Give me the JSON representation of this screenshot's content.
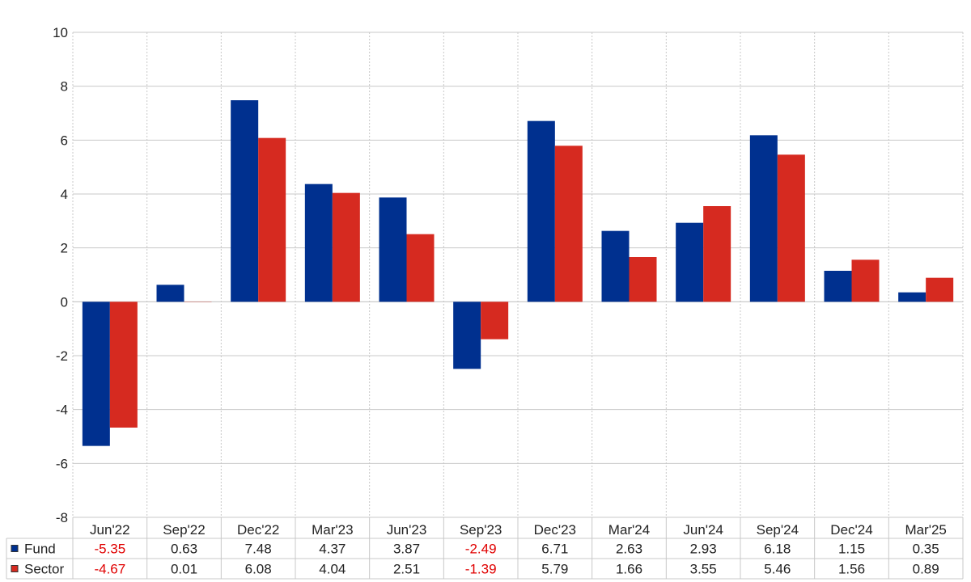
{
  "chart_data": {
    "type": "bar",
    "categories": [
      "Jun'22",
      "Sep'22",
      "Dec'22",
      "Mar'23",
      "Jun'23",
      "Sep'23",
      "Dec'23",
      "Mar'24",
      "Jun'24",
      "Sep'24",
      "Dec'24",
      "Mar'25"
    ],
    "series": [
      {
        "name": "Fund",
        "color": "#00308f",
        "values": [
          -5.35,
          0.63,
          7.48,
          4.37,
          3.87,
          -2.49,
          6.71,
          2.63,
          2.93,
          6.18,
          1.15,
          0.35
        ]
      },
      {
        "name": "Sector",
        "color": "#d62a20",
        "values": [
          -4.67,
          0.01,
          6.08,
          4.04,
          2.51,
          -1.39,
          5.79,
          1.66,
          3.55,
          5.46,
          1.56,
          0.89
        ]
      }
    ],
    "value_labels": {
      "Fund": [
        "-5.35",
        "0.63",
        "7.48",
        "4.37",
        "3.87",
        "-2.49",
        "6.71",
        "2.63",
        "2.93",
        "6.18",
        "1.15",
        "0.35"
      ],
      "Sector": [
        "-4.67",
        "0.01",
        "6.08",
        "4.04",
        "2.51",
        "-1.39",
        "5.79",
        "1.66",
        "3.55",
        "5.46",
        "1.56",
        "0.89"
      ]
    },
    "y_ticks": [
      "10",
      "8",
      "6",
      "4",
      "2",
      "0",
      "-2",
      "-4",
      "-6",
      "-8"
    ],
    "ylim": [
      -8,
      10
    ],
    "grid": true,
    "legend_placement": "data-table-left",
    "negative_value_color": "#e00000",
    "title": "",
    "xlabel": "",
    "ylabel": ""
  }
}
